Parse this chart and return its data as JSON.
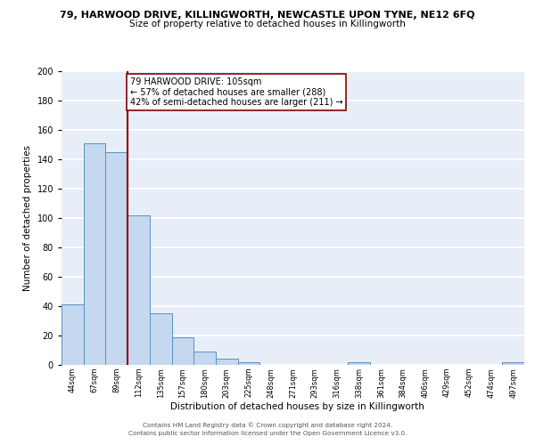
{
  "title_top": "79, HARWOOD DRIVE, KILLINGWORTH, NEWCASTLE UPON TYNE, NE12 6FQ",
  "title_sub": "Size of property relative to detached houses in Killingworth",
  "xlabel": "Distribution of detached houses by size in Killingworth",
  "ylabel": "Number of detached properties",
  "footer_line1": "Contains HM Land Registry data © Crown copyright and database right 2024.",
  "footer_line2": "Contains public sector information licensed under the Open Government Licence v3.0.",
  "annotation_title": "79 HARWOOD DRIVE: 105sqm",
  "annotation_line1": "← 57% of detached houses are smaller (288)",
  "annotation_line2": "42% of semi-detached houses are larger (211) →",
  "bar_labels": [
    "44sqm",
    "67sqm",
    "89sqm",
    "112sqm",
    "135sqm",
    "157sqm",
    "180sqm",
    "203sqm",
    "225sqm",
    "248sqm",
    "271sqm",
    "293sqm",
    "316sqm",
    "338sqm",
    "361sqm",
    "384sqm",
    "406sqm",
    "429sqm",
    "452sqm",
    "474sqm",
    "497sqm"
  ],
  "bar_values": [
    41,
    151,
    145,
    102,
    35,
    19,
    9,
    4,
    2,
    0,
    0,
    0,
    0,
    2,
    0,
    0,
    0,
    0,
    0,
    0,
    2
  ],
  "bar_color": "#c5d8ef",
  "bar_edge_color": "#5a8fc0",
  "vline_color": "#8b0000",
  "ylim": [
    0,
    200
  ],
  "yticks": [
    0,
    20,
    40,
    60,
    80,
    100,
    120,
    140,
    160,
    180,
    200
  ],
  "bg_color": "#e8eef8",
  "grid_color": "#ffffff",
  "annotation_box_color": "#ffffff",
  "annotation_box_edge": "#8b0000",
  "vline_label_idx": 3
}
